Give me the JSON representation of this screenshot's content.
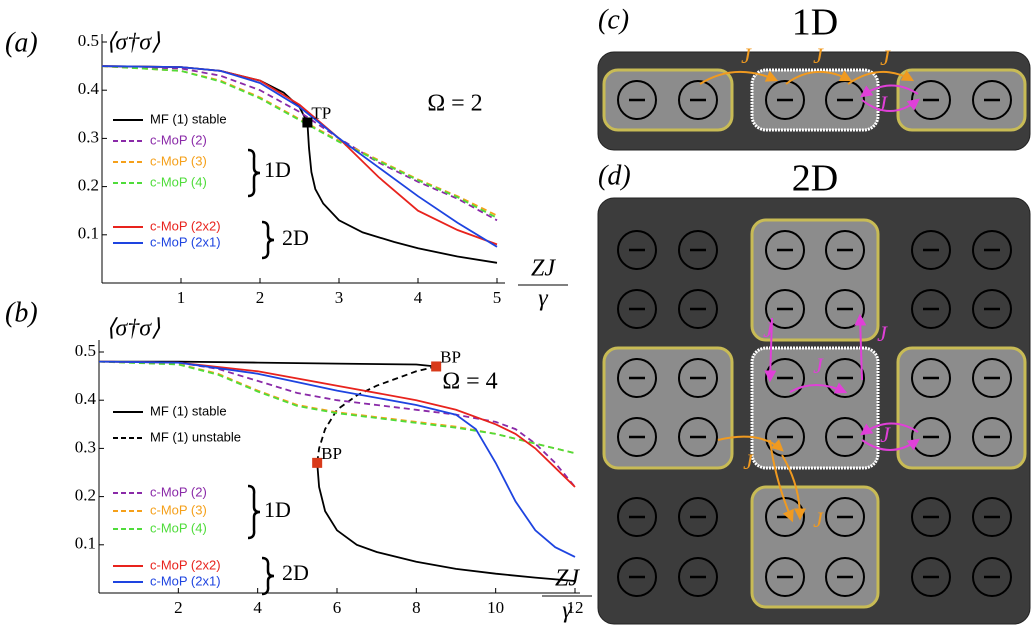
{
  "chart_data": [
    {
      "type": "line",
      "panel_label": "(a)",
      "ylabel": "⟨σ†σ⟩",
      "xlabel": {
        "numerator": "ZJ",
        "denominator": "γ"
      },
      "annotation": "Ω = 2",
      "group_labels": [
        "1D",
        "2D"
      ],
      "xlim": [
        0,
        5
      ],
      "ylim": [
        0,
        0.5
      ],
      "xticks": [
        1,
        2,
        3,
        4,
        5
      ],
      "yticks": [
        0.1,
        0.2,
        0.3,
        0.4,
        0.5
      ],
      "series": [
        {
          "name": "MF (1) stable",
          "color": "#000000",
          "dash": false,
          "x": [
            0,
            1,
            1.5,
            2,
            2.3,
            2.5,
            2.6,
            2.62,
            2.65,
            2.7,
            2.8,
            3,
            3.3,
            3.7,
            4,
            4.5,
            5
          ],
          "values": [
            0.45,
            0.448,
            0.44,
            0.42,
            0.395,
            0.365,
            0.333,
            0.28,
            0.23,
            0.195,
            0.165,
            0.13,
            0.105,
            0.085,
            0.072,
            0.055,
            0.042
          ]
        },
        {
          "name": "c-MoP (2)",
          "color": "#8a2aa8",
          "dash": true,
          "x": [
            0,
            1,
            1.5,
            2,
            2.5,
            3,
            3.5,
            4,
            4.5,
            5
          ],
          "values": [
            0.45,
            0.445,
            0.43,
            0.4,
            0.355,
            0.3,
            0.25,
            0.21,
            0.175,
            0.13
          ]
        },
        {
          "name": "c-MoP (3)",
          "color": "#f5a01a",
          "dash": true,
          "x": [
            0,
            1,
            1.5,
            2,
            2.5,
            3,
            3.5,
            4,
            4.5,
            5
          ],
          "values": [
            0.45,
            0.44,
            0.42,
            0.385,
            0.34,
            0.295,
            0.255,
            0.215,
            0.18,
            0.14
          ]
        },
        {
          "name": "c-MoP (4)",
          "color": "#4fdc3a",
          "dash": true,
          "x": [
            0,
            1,
            1.5,
            2,
            2.5,
            3,
            3.5,
            4,
            4.5,
            5
          ],
          "values": [
            0.45,
            0.44,
            0.418,
            0.383,
            0.338,
            0.293,
            0.253,
            0.213,
            0.178,
            0.135
          ]
        },
        {
          "name": "c-MoP (2x2)",
          "color": "#e8231d",
          "dash": false,
          "x": [
            0,
            1,
            1.5,
            2,
            2.5,
            3,
            3.5,
            4,
            4.5,
            5
          ],
          "values": [
            0.45,
            0.448,
            0.44,
            0.42,
            0.37,
            0.3,
            0.22,
            0.15,
            0.11,
            0.08
          ]
        },
        {
          "name": "c-MoP (2x1)",
          "color": "#1e44e0",
          "dash": false,
          "x": [
            0,
            1,
            1.5,
            2,
            2.5,
            3,
            3.5,
            4,
            4.5,
            5
          ],
          "values": [
            0.45,
            0.448,
            0.44,
            0.415,
            0.365,
            0.3,
            0.24,
            0.18,
            0.125,
            0.075
          ]
        }
      ],
      "markers": [
        {
          "label": "TP",
          "x": 2.6,
          "y": 0.333,
          "color": "#000000"
        }
      ]
    },
    {
      "type": "line",
      "panel_label": "(b)",
      "ylabel": "⟨σ†σ⟩",
      "xlabel": {
        "numerator": "ZJ",
        "denominator": "γ"
      },
      "annotation": "Ω = 4",
      "group_labels": [
        "1D",
        "2D"
      ],
      "xlim": [
        0,
        12
      ],
      "ylim": [
        0,
        0.5
      ],
      "xticks": [
        2,
        4,
        6,
        8,
        10,
        12
      ],
      "yticks": [
        0.1,
        0.2,
        0.3,
        0.4,
        0.5
      ],
      "series": [
        {
          "name": "MF (1) stable",
          "color": "#000000",
          "dash": false,
          "x": [
            0,
            2,
            4,
            6,
            8,
            8.5,
            null,
            5.5,
            5.55,
            5.7,
            6,
            6.5,
            7,
            8,
            9,
            10,
            11,
            12
          ],
          "values": [
            0.48,
            0.48,
            0.478,
            0.476,
            0.474,
            0.47,
            null,
            0.27,
            0.22,
            0.17,
            0.13,
            0.1,
            0.085,
            0.065,
            0.05,
            0.04,
            0.032,
            0.025
          ]
        },
        {
          "name": "MF (1) unstable",
          "color": "#000000",
          "dash": true,
          "x": [
            8.5,
            8,
            7.5,
            7,
            6.5,
            6,
            5.7,
            5.55,
            5.5
          ],
          "values": [
            0.47,
            0.46,
            0.445,
            0.43,
            0.41,
            0.38,
            0.34,
            0.3,
            0.27
          ]
        },
        {
          "name": "c-MoP (2)",
          "color": "#8a2aa8",
          "dash": true,
          "x": [
            0,
            2,
            3,
            4,
            5,
            6,
            7,
            8,
            9,
            10,
            10.5,
            11,
            11.5,
            12
          ],
          "values": [
            0.48,
            0.478,
            0.465,
            0.44,
            0.415,
            0.4,
            0.39,
            0.38,
            0.37,
            0.355,
            0.34,
            0.31,
            0.27,
            0.22
          ]
        },
        {
          "name": "c-MoP (3)",
          "color": "#f5a01a",
          "dash": true,
          "x": [
            0,
            2,
            3,
            4,
            5,
            6,
            7,
            8,
            9,
            10,
            11,
            12
          ],
          "values": [
            0.48,
            0.475,
            0.455,
            0.42,
            0.39,
            0.375,
            0.365,
            0.355,
            0.345,
            0.33,
            0.31,
            0.29
          ]
        },
        {
          "name": "c-MoP (4)",
          "color": "#4fdc3a",
          "dash": true,
          "x": [
            0,
            2,
            3,
            4,
            5,
            6,
            7,
            8,
            9,
            10,
            11,
            12
          ],
          "values": [
            0.48,
            0.474,
            0.453,
            0.418,
            0.388,
            0.373,
            0.363,
            0.353,
            0.343,
            0.33,
            0.31,
            0.29
          ]
        },
        {
          "name": "c-MoP (2x2)",
          "color": "#e8231d",
          "dash": false,
          "x": [
            0,
            2,
            4,
            6,
            8,
            9,
            10,
            10.5,
            11,
            11.5,
            12
          ],
          "values": [
            0.48,
            0.478,
            0.46,
            0.43,
            0.4,
            0.38,
            0.35,
            0.33,
            0.3,
            0.26,
            0.22
          ]
        },
        {
          "name": "c-MoP (2x1)",
          "color": "#1e44e0",
          "dash": false,
          "x": [
            0,
            2,
            4,
            6,
            8,
            9,
            9.5,
            10,
            10.5,
            11,
            11.5,
            12
          ],
          "values": [
            0.48,
            0.478,
            0.455,
            0.42,
            0.39,
            0.37,
            0.34,
            0.27,
            0.19,
            0.13,
            0.095,
            0.075
          ]
        }
      ],
      "markers": [
        {
          "label": "BP",
          "x": 8.5,
          "y": 0.47,
          "color": "#d83a1a"
        },
        {
          "label": "BP",
          "x": 5.5,
          "y": 0.27,
          "color": "#d83a1a"
        }
      ]
    }
  ],
  "diagrams": [
    {
      "label": "(c)",
      "title": "1D",
      "j_labels": [
        "J",
        "J",
        "J",
        "J"
      ]
    },
    {
      "label": "(d)",
      "title": "2D",
      "j_labels": [
        "J",
        "J",
        "J",
        "J",
        "J",
        "J"
      ]
    }
  ]
}
